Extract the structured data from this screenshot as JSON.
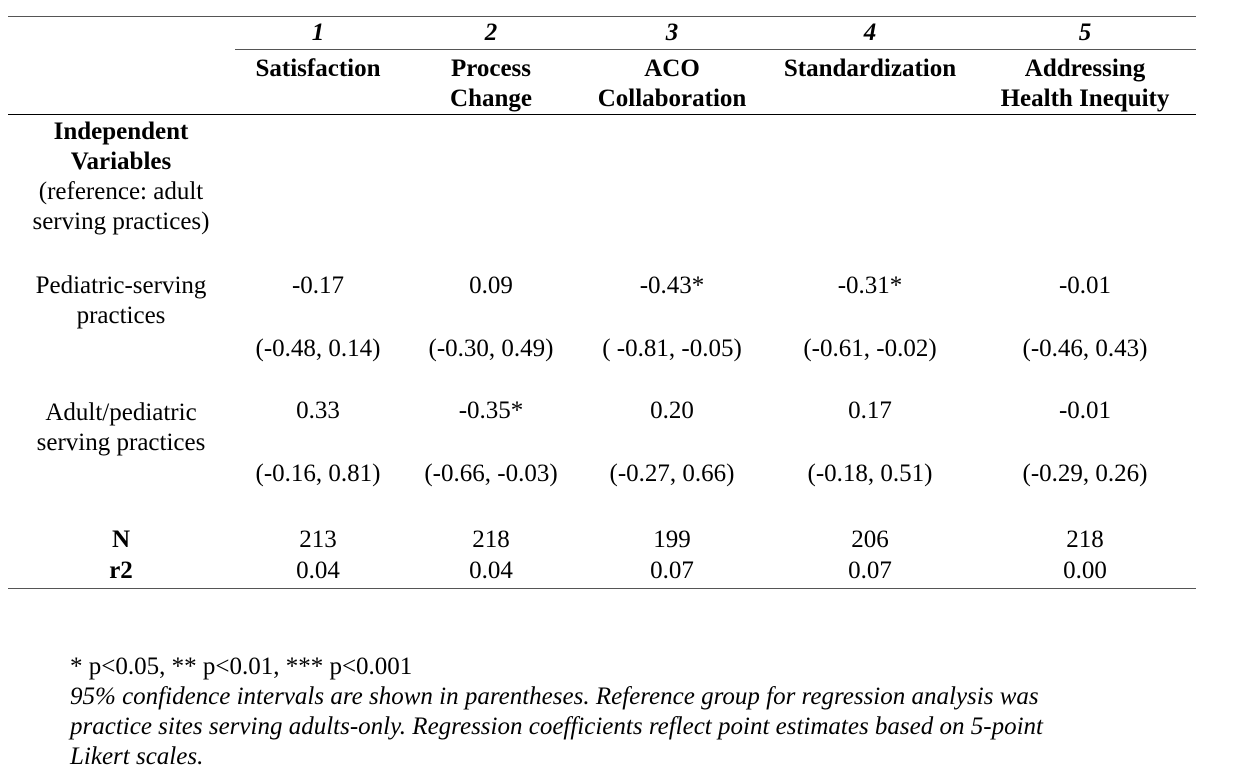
{
  "columns": [
    {
      "number": "1",
      "label_lines": [
        "Satisfaction"
      ]
    },
    {
      "number": "2",
      "label_lines": [
        "Process",
        "Change"
      ]
    },
    {
      "number": "3",
      "label_lines": [
        "ACO",
        "Collaboration"
      ]
    },
    {
      "number": "4",
      "label_lines": [
        "Standardization"
      ]
    },
    {
      "number": "5",
      "label_lines": [
        "Addressing",
        "Health Inequity"
      ]
    }
  ],
  "section_header": {
    "bold_lines": [
      "Independent",
      "Variables"
    ],
    "normal_lines": [
      "(reference: adult",
      "serving practices)"
    ]
  },
  "rows": [
    {
      "label_lines": [
        "Pediatric-serving",
        "practices"
      ],
      "estimates": [
        "-0.17",
        "0.09",
        "-0.43*",
        "-0.31*",
        "-0.01"
      ],
      "intervals": [
        "(-0.48, 0.14)",
        "(-0.30, 0.49)",
        "( -0.81, -0.05)",
        "(-0.61, -0.02)",
        "(-0.46, 0.43)"
      ]
    },
    {
      "label_lines": [
        "Adult/pediatric",
        "serving practices"
      ],
      "estimates": [
        "0.33",
        "-0.35*",
        "0.20",
        "0.17",
        "-0.01"
      ],
      "intervals": [
        "(-0.16, 0.81)",
        "(-0.66, -0.03)",
        "(-0.27, 0.66)",
        "(-0.18, 0.51)",
        "(-0.29, 0.26)"
      ]
    }
  ],
  "stats": [
    {
      "label": "N",
      "values": [
        "213",
        "218",
        "199",
        "206",
        "218"
      ]
    },
    {
      "label": "r2",
      "values": [
        "0.04",
        "0.04",
        "0.07",
        "0.07",
        "0.00"
      ]
    }
  ],
  "notes": {
    "significance": "* p<0.05, ** p<0.01, *** p<0.001",
    "caption_lines": [
      "95% confidence intervals are shown in parentheses. Reference group for regression analysis was",
      "practice sites serving adults-only. Regression coefficients reflect point estimates based on 5-point",
      "Likert scales."
    ]
  }
}
